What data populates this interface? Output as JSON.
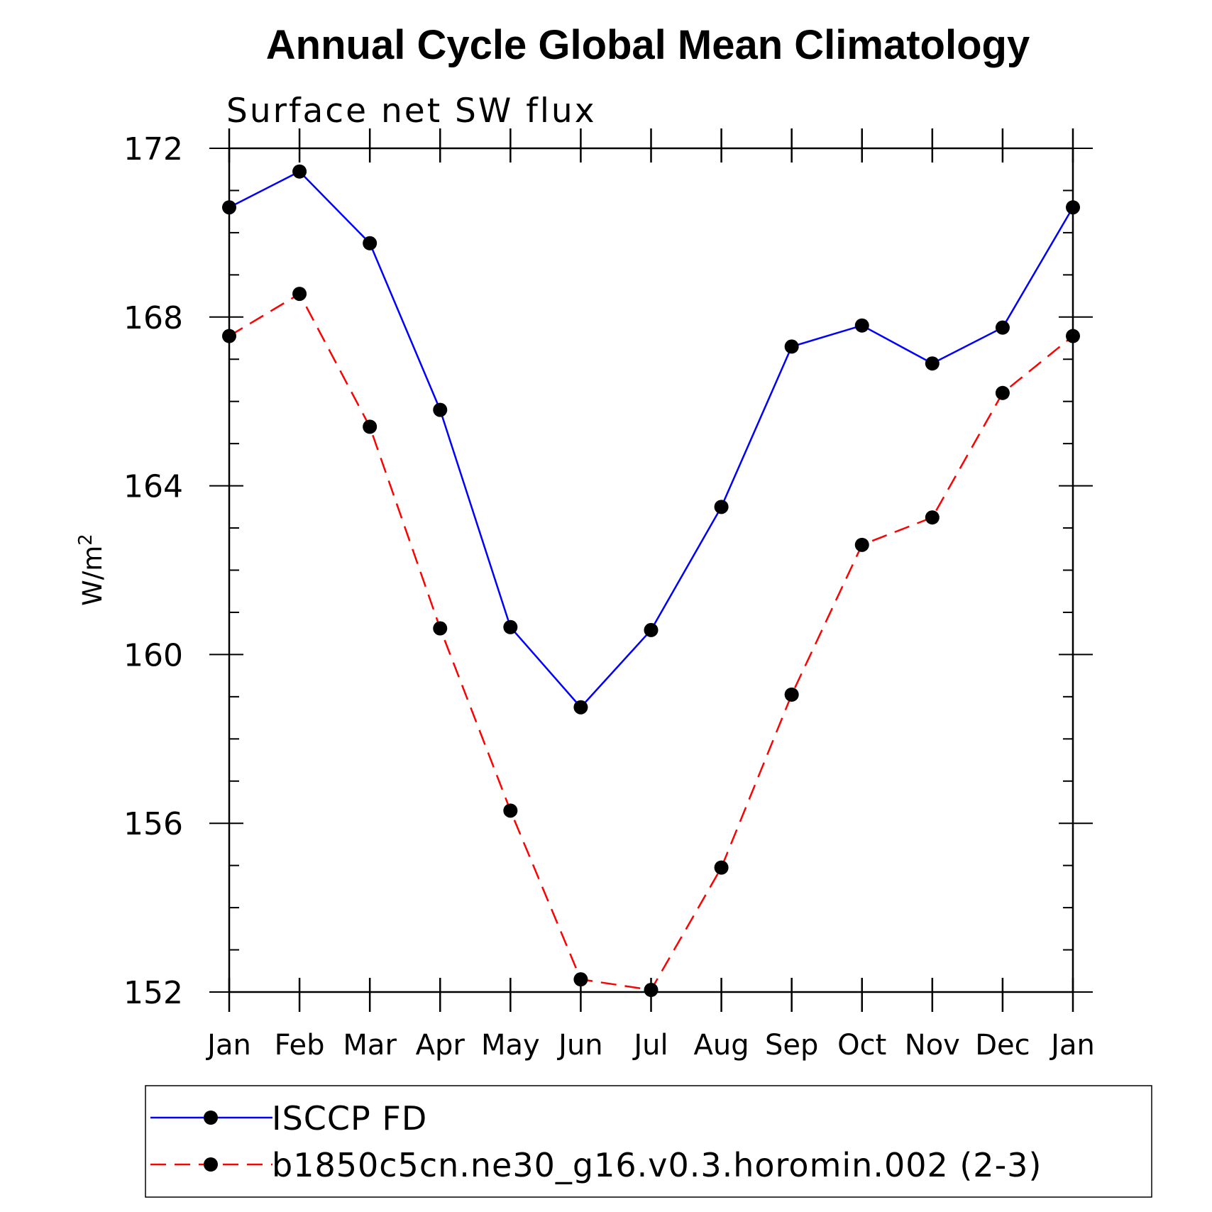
{
  "chart_data": {
    "type": "line",
    "title": "Annual Cycle Global Mean Climatology",
    "subtitle": "Surface net SW flux",
    "ylabel_base": "W/m",
    "ylabel_sup": "2",
    "categories": [
      "Jan",
      "Feb",
      "Mar",
      "Apr",
      "May",
      "Jun",
      "Jul",
      "Aug",
      "Sep",
      "Oct",
      "Nov",
      "Dec",
      "Jan"
    ],
    "ylim": [
      152,
      172
    ],
    "yticks": [
      "152",
      "156",
      "160",
      "164",
      "168",
      "172"
    ],
    "series": [
      {
        "name": "ISCCP FD",
        "color": "#0000ff",
        "dash": "solid",
        "values": [
          170.6,
          171.45,
          169.75,
          165.8,
          160.65,
          158.75,
          160.58,
          163.5,
          167.3,
          167.8,
          166.9,
          167.75,
          170.6
        ]
      },
      {
        "name": "b1850c5cn.ne30_g16.v0.3.horomin.002 (2-3)",
        "color": "#ff0000",
        "dash": "dashed",
        "values": [
          167.55,
          168.55,
          165.4,
          160.62,
          156.3,
          152.3,
          152.05,
          154.95,
          159.05,
          162.6,
          163.25,
          166.2,
          167.55
        ]
      }
    ],
    "legend_position": "bottom"
  }
}
